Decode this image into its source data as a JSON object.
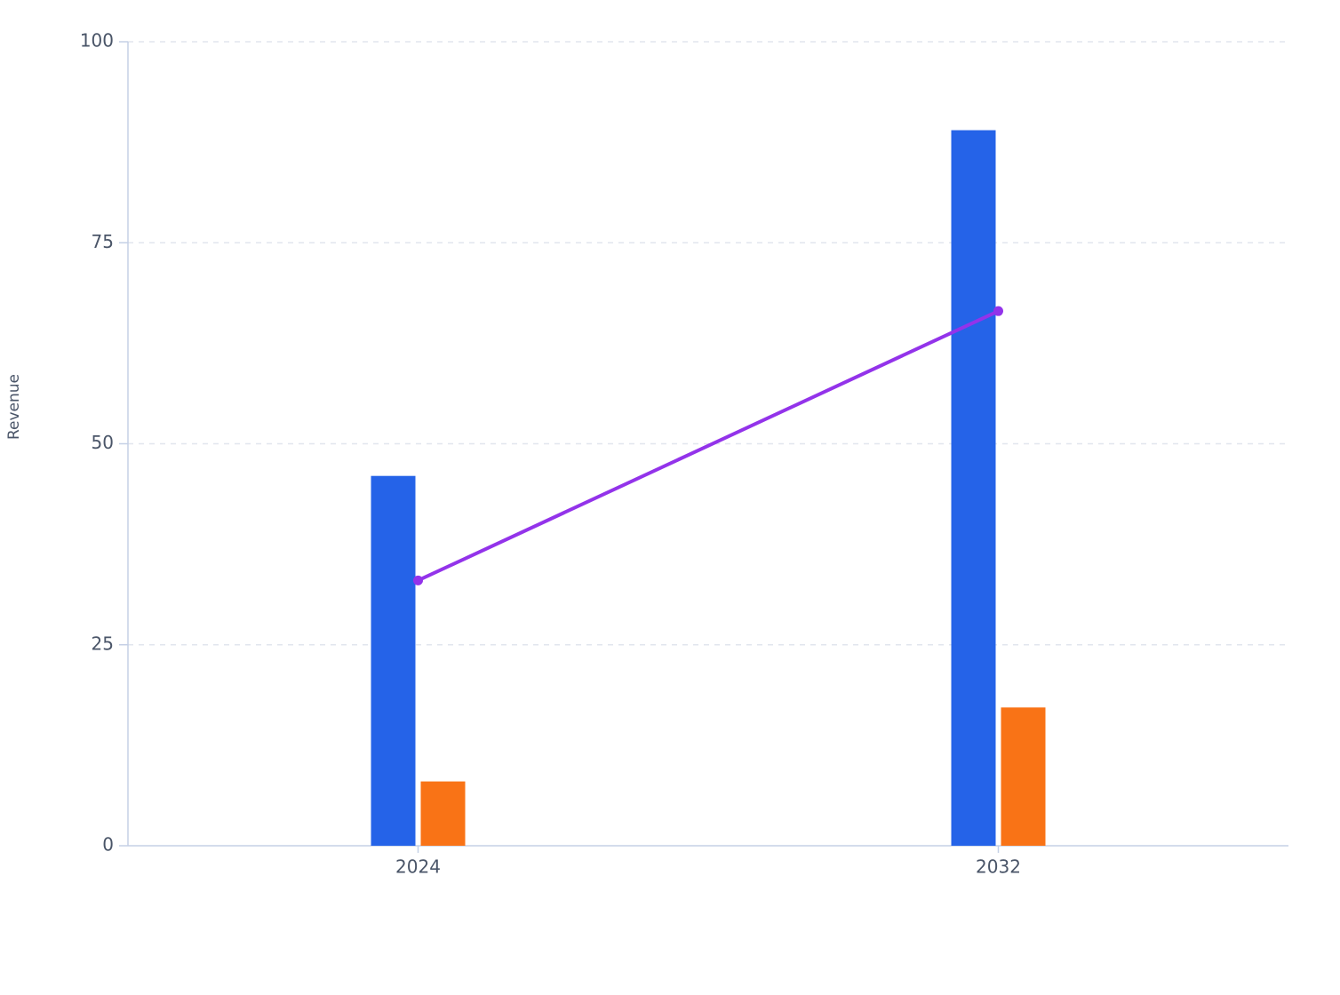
{
  "chart_data": {
    "type": "bar",
    "y_label": "Revenue",
    "categories": [
      "2024",
      "2032"
    ],
    "series": [
      {
        "type": "bar",
        "color": "#2563e8",
        "values": [
          46,
          89
        ]
      },
      {
        "type": "bar",
        "color": "#f97316",
        "values": [
          8,
          17.2
        ]
      },
      {
        "type": "line",
        "color": "#9333ea",
        "values": [
          33,
          66.5
        ]
      }
    ],
    "ylim": [
      0,
      100
    ],
    "yticks": [
      0,
      25,
      50,
      75,
      100
    ],
    "grid": true
  }
}
